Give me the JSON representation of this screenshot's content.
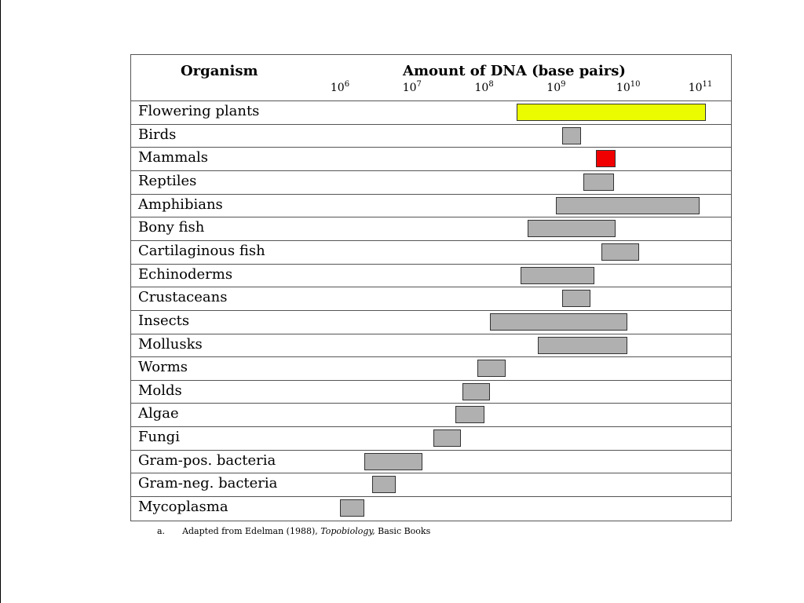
{
  "header": {
    "organism_label": "Organism",
    "amount_label": "Amount of DNA (base pairs)"
  },
  "footnote": {
    "letter": "a.",
    "text_before": "Adapted  from Edelman (1988),",
    "italic": "Topobiology,",
    "text_after": "Basic Books"
  },
  "chart_data": {
    "type": "bar",
    "orientation": "horizontal-range",
    "xlabel": "Amount of DNA (base pairs)",
    "xscale": "log10",
    "xlim": [
      1000000.0,
      100000000000.0
    ],
    "ticks": [
      {
        "base": "10",
        "exp": "6",
        "value": 1000000.0
      },
      {
        "base": "10",
        "exp": "7",
        "value": 10000000.0
      },
      {
        "base": "10",
        "exp": "8",
        "value": 100000000.0
      },
      {
        "base": "10",
        "exp": "9",
        "value": 1000000000.0
      },
      {
        "base": "10",
        "exp": "10",
        "value": 10000000000.0
      },
      {
        "base": "10",
        "exp": "11",
        "value": 100000000000.0
      }
    ],
    "grid": false,
    "colors": {
      "highlight_yellow": "#ecfc00",
      "highlight_red": "#f00000",
      "default_bar": "#b0b0b0"
    },
    "rows": [
      {
        "name": "Flowering plants",
        "min": 280000000.0,
        "max": 120000000000.0,
        "color": "#ecfc00"
      },
      {
        "name": "Birds",
        "min": 1200000000.0,
        "max": 2200000000.0,
        "color": "#b0b0b0"
      },
      {
        "name": "Mammals",
        "min": 3600000000.0,
        "max": 6600000000.0,
        "color": "#f00000"
      },
      {
        "name": "Reptiles",
        "min": 2400000000.0,
        "max": 6300000000.0,
        "color": "#b0b0b0"
      },
      {
        "name": "Amphibians",
        "min": 1000000000.0,
        "max": 98000000000.0,
        "color": "#b0b0b0"
      },
      {
        "name": "Bony fish",
        "min": 400000000.0,
        "max": 6600000000.0,
        "color": "#b0b0b0"
      },
      {
        "name": "Cartilaginous fish",
        "min": 4200000000.0,
        "max": 14000000000.0,
        "color": "#b0b0b0"
      },
      {
        "name": "Echinoderms",
        "min": 320000000.0,
        "max": 3400000000.0,
        "color": "#b0b0b0"
      },
      {
        "name": "Crustaceans",
        "min": 1200000000.0,
        "max": 3000000000.0,
        "color": "#b0b0b0"
      },
      {
        "name": "Insects",
        "min": 120000000.0,
        "max": 9600000000.0,
        "color": "#b0b0b0"
      },
      {
        "name": "Mollusks",
        "min": 560000000.0,
        "max": 9600000000.0,
        "color": "#b0b0b0"
      },
      {
        "name": "Worms",
        "min": 80000000.0,
        "max": 200000000.0,
        "color": "#b0b0b0"
      },
      {
        "name": "Molds",
        "min": 50000000.0,
        "max": 120000000.0,
        "color": "#b0b0b0"
      },
      {
        "name": "Algae",
        "min": 40000000.0,
        "max": 100000000.0,
        "color": "#b0b0b0"
      },
      {
        "name": "Fungi",
        "min": 20000000.0,
        "max": 48000000.0,
        "color": "#b0b0b0"
      },
      {
        "name": "Gram-pos. bacteria",
        "min": 2200000.0,
        "max": 14000000.0,
        "color": "#b0b0b0"
      },
      {
        "name": "Gram-neg. bacteria",
        "min": 2800000.0,
        "max": 6000000.0,
        "color": "#b0b0b0"
      },
      {
        "name": "Mycoplasma",
        "min": 1000000.0,
        "max": 2200000.0,
        "color": "#b0b0b0"
      }
    ]
  }
}
